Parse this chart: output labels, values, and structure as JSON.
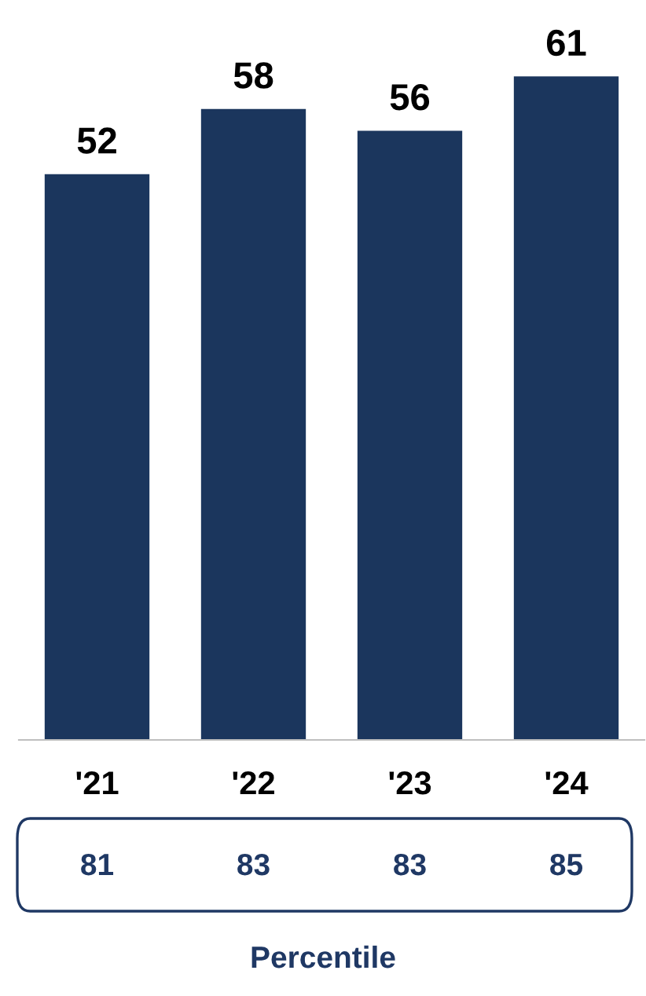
{
  "chart_data": {
    "type": "bar",
    "categories": [
      "'21",
      "'22",
      "'23",
      "'24"
    ],
    "values": [
      52,
      58,
      56,
      61
    ],
    "color": "#1b365d",
    "data_labels": true,
    "tick_labels": "x",
    "grid": false,
    "annotations": [
      "81",
      "83",
      "83",
      "85",
      "Percentile"
    ]
  }
}
